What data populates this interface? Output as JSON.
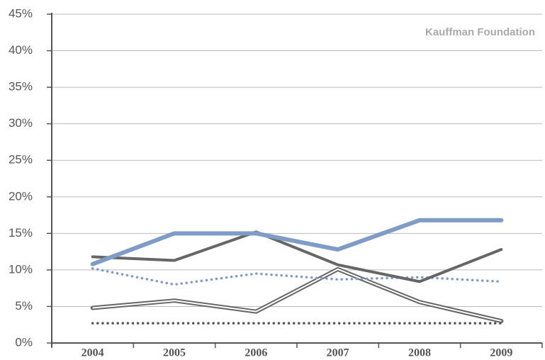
{
  "chart_data": {
    "type": "line",
    "source": "Kauffman Foundation",
    "categories": [
      "2004",
      "2005",
      "2006",
      "2007",
      "2008",
      "2009"
    ],
    "ylim": [
      0,
      45
    ],
    "yticks": [
      {
        "value": 0,
        "label": "0%"
      },
      {
        "value": 5,
        "label": "5%"
      },
      {
        "value": 10,
        "label": "10%"
      },
      {
        "value": 15,
        "label": "15%"
      },
      {
        "value": 20,
        "label": "20%"
      },
      {
        "value": 25,
        "label": "25%"
      },
      {
        "value": 30,
        "label": "30%"
      },
      {
        "value": 35,
        "label": "35%"
      },
      {
        "value": 40,
        "label": "40%"
      },
      {
        "value": 45,
        "label": "45%"
      }
    ],
    "grid": true,
    "series": [
      {
        "color": "#7f9cc6",
        "line_width": 6,
        "line_style": "solid",
        "values": [
          10.8,
          15,
          15,
          12.8,
          16.8,
          16.8
        ]
      },
      {
        "color": "#666666",
        "line_width": 4,
        "line_style": "solid",
        "values": [
          11.8,
          11.3,
          15.2,
          10.7,
          8.4,
          12.8
        ]
      },
      {
        "color": "#7f9cc6",
        "line_width": 3.5,
        "line_style": "dotted",
        "values": [
          10.2,
          8,
          9.5,
          8.7,
          9,
          8.4
        ]
      },
      {
        "color": "#666666",
        "line_width": 6,
        "line_style": "double",
        "values": [
          4.8,
          5.8,
          4.3,
          10.1,
          5.6,
          3
        ]
      },
      {
        "color": "#555555",
        "line_width": 3.5,
        "line_style": "dotted",
        "values": [
          2.7,
          2.7,
          2.7,
          2.7,
          2.7,
          2.7
        ]
      }
    ]
  }
}
